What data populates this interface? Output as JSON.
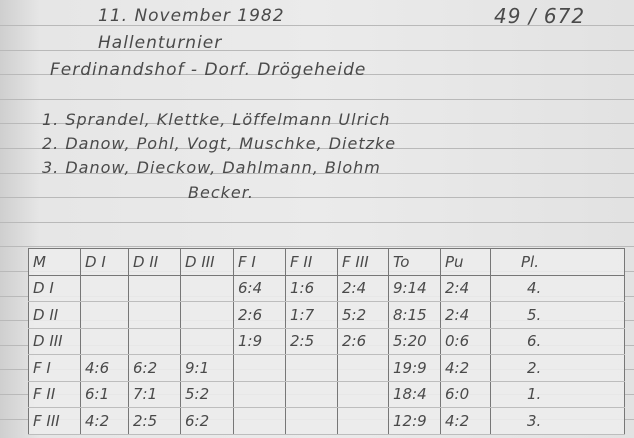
{
  "header": {
    "date": "11. November 1982",
    "ref": "49 / 672",
    "title": "Hallenturnier",
    "teams": "Ferdinandshof - Dorf. Drögeheide"
  },
  "results": [
    "1. Sprandel, Klettke, Löffelmann Ulrich",
    "2. Danow, Pohl, Vogt, Muschke, Dietzke",
    "3. Danow, Dieckow, Dahlmann, Blohm",
    "Becker."
  ],
  "table": {
    "columns": [
      "M",
      "D I",
      "D II",
      "D III",
      "F I",
      "F II",
      "F III",
      "To",
      "Pu",
      "Pl."
    ],
    "rows": [
      [
        "D I",
        "",
        "",
        "",
        "6:4",
        "1:6",
        "2:4",
        "9:14",
        "2:4",
        "4."
      ],
      [
        "D II",
        "",
        "",
        "",
        "2:6",
        "1:7",
        "5:2",
        "8:15",
        "2:4",
        "5."
      ],
      [
        "D III",
        "",
        "",
        "",
        "1:9",
        "2:5",
        "2:6",
        "5:20",
        "0:6",
        "6."
      ],
      [
        "F I",
        "4:6",
        "6:2",
        "9:1",
        "",
        "",
        "",
        "19:9",
        "4:2",
        "2."
      ],
      [
        "F II",
        "6:1",
        "7:1",
        "5:2",
        "",
        "",
        "",
        "18:4",
        "6:0",
        "1."
      ],
      [
        "F III",
        "4:2",
        "2:5",
        "6:2",
        "",
        "",
        "",
        "12:9",
        "4:2",
        "3."
      ]
    ]
  }
}
